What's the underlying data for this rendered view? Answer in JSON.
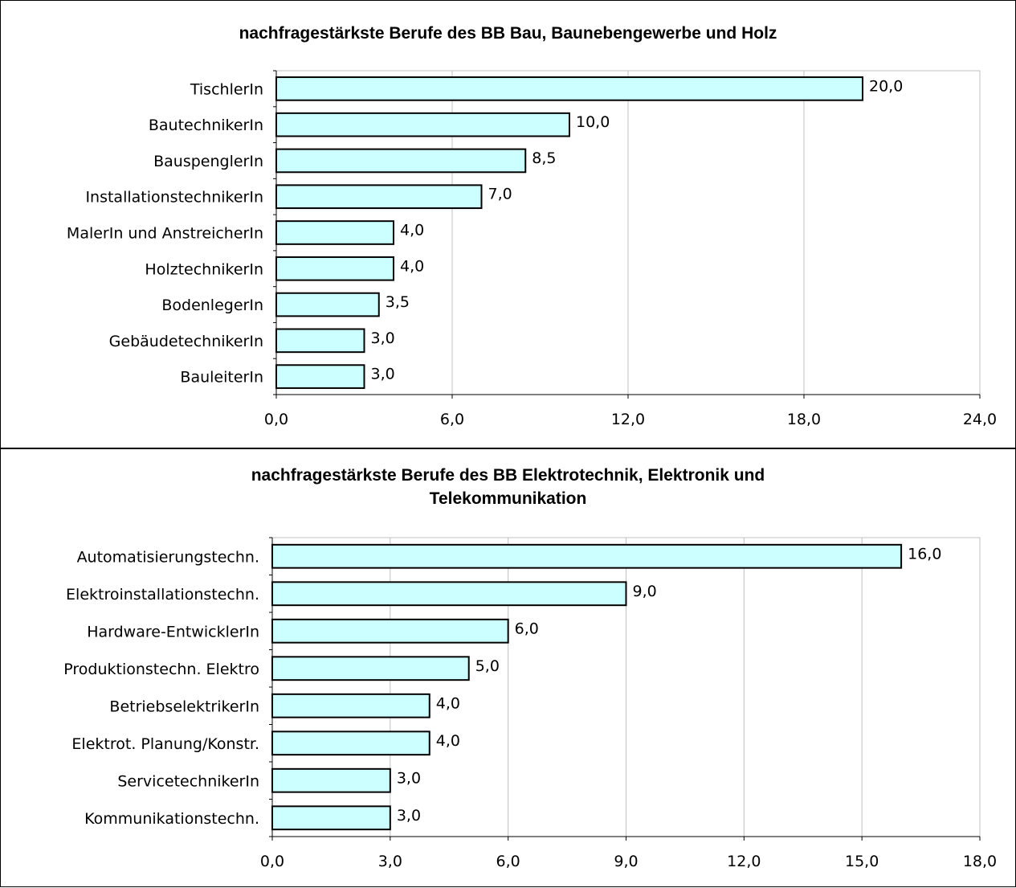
{
  "colors": {
    "bar_fill": "#ccffff",
    "bar_stroke": "#000000",
    "grid": "#c0c0c0",
    "axis": "#000000"
  },
  "chart_data": [
    {
      "type": "bar",
      "orientation": "horizontal",
      "title": "nachfragestärkste Berufe des BB Bau, Baunebengewerbe und Holz",
      "categories": [
        "TischlerIn",
        "BautechnikerIn",
        "BauspenglerIn",
        "InstallationstechnikerIn",
        "MalerIn und AnstreicherIn",
        "HolztechnikerIn",
        "BodenlegerIn",
        "GebäudetechnikerIn",
        "BauleiterIn"
      ],
      "values": [
        20.0,
        10.0,
        8.5,
        7.0,
        4.0,
        4.0,
        3.5,
        3.0,
        3.0
      ],
      "value_labels": [
        "20,0",
        "10,0",
        "8,5",
        "7,0",
        "4,0",
        "4,0",
        "3,5",
        "3,0",
        "3,0"
      ],
      "xlim": [
        0,
        24
      ],
      "xticks": [
        0,
        6,
        12,
        18,
        24
      ],
      "xtick_labels": [
        "0,0",
        "6,0",
        "12,0",
        "18,0",
        "24,0"
      ],
      "grid": "vertical"
    },
    {
      "type": "bar",
      "orientation": "horizontal",
      "title_lines": [
        "nachfragestärkste Berufe des BB Elektrotechnik, Elektronik und",
        "Telekommunikation"
      ],
      "categories": [
        "Automatisierungstechn.",
        "Elektroinstallationstechn.",
        "Hardware-EntwicklerIn",
        "Produktionstechn. Elektro",
        "BetriebselektrikerIn",
        "Elektrot. Planung/Konstr.",
        "ServicetechnikerIn",
        "Kommunikationstechn."
      ],
      "values": [
        16.0,
        9.0,
        6.0,
        5.0,
        4.0,
        4.0,
        3.0,
        3.0
      ],
      "value_labels": [
        "16,0",
        "9,0",
        "6,0",
        "5,0",
        "4,0",
        "4,0",
        "3,0",
        "3,0"
      ],
      "xlim": [
        0,
        18
      ],
      "xticks": [
        0,
        3,
        6,
        9,
        12,
        15,
        18
      ],
      "xtick_labels": [
        "0,0",
        "3,0",
        "6,0",
        "9,0",
        "12,0",
        "15,0",
        "18,0"
      ],
      "grid": "vertical"
    }
  ]
}
